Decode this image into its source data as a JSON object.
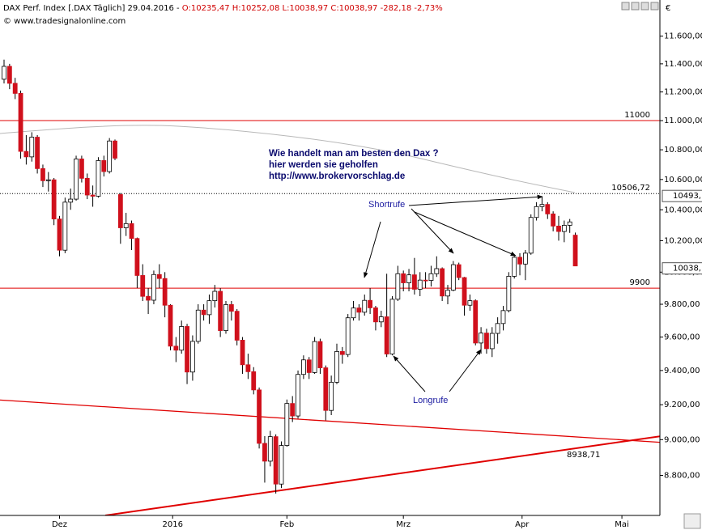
{
  "chart_data": {
    "type": "candlestick",
    "title": "DAX Perf. Index [.DAX  Täglich] 29.04.2016 - ",
    "subtitle": "O:10235,47 H:10252,08 L:10038,97 C:10038,97 -282,18 -2,73%",
    "source": "© www.tradesignalonline.com",
    "currency": "€",
    "annotations": [
      "Wie handelt man am besten  den Dax ?",
      "hier werden sie geholfen",
      "http://www.brokervorschlag.de",
      "Shortrufe",
      "Longrufe",
      "8938,71"
    ],
    "price_tags": [
      "10493,",
      "10038,"
    ],
    "log_scale": true,
    "up_color": "#ffffff",
    "down_color": "#d0101c",
    "line_color": "#e00000",
    "open": [
      11290,
      11382,
      11261,
      11190,
      10789,
      10752,
      10886,
      10673,
      10592,
      10598,
      10340,
      10139,
      10450,
      10470,
      10738,
      10608,
      10497,
      10489,
      10727,
      10653,
      10860,
      10500,
      10283,
      10310,
      10214,
      9979,
      9849,
      9825,
      9985,
      9960,
      9794,
      9545,
      9521,
      9664,
      9391,
      9574,
      9764,
      9736,
      9822,
      9880,
      9639,
      9798,
      9757,
      9581,
      9434,
      9393,
      9286,
      8979,
      8879,
      9017,
      8752,
      8967,
      9207,
      9135,
      9377,
      9463,
      9388,
      9573,
      9416,
      9167,
      9331,
      9513,
      9495,
      9717,
      9777,
      9751,
      9824,
      9778,
      9692,
      9723,
      9498,
      9831,
      9990,
      9933,
      9983,
      9893,
      9950,
      9948,
      9990,
      10022,
      9851,
      9887,
      10047,
      9966,
      9794,
      9822,
      9564,
      9624,
      9530,
      9622,
      9682,
      9761,
      9974,
      10094,
      10051,
      10120,
      10350,
      10421,
      10435,
      10373,
      10294,
      10259,
      10299,
      10235.47
    ],
    "high": [
      11430,
      11400,
      11300,
      11210,
      10900,
      10920,
      10900,
      10700,
      10650,
      10610,
      10360,
      10480,
      10540,
      10760,
      10760,
      10640,
      10560,
      10750,
      10760,
      10880,
      10870,
      10510,
      10380,
      10330,
      10220,
      10050,
      9900,
      10010,
      10050,
      10000,
      9800,
      9600,
      9700,
      9680,
      9610,
      9800,
      9800,
      9860,
      9920,
      9900,
      9820,
      9820,
      9770,
      9600,
      9500,
      9420,
      9300,
      9020,
      9050,
      9030,
      8990,
      9230,
      9250,
      9400,
      9490,
      9480,
      9600,
      9590,
      9430,
      9370,
      9560,
      9540,
      9740,
      9820,
      9800,
      9860,
      9900,
      9790,
      9760,
      9990,
      9850,
      10040,
      10010,
      10020,
      10090,
      10000,
      10000,
      10040,
      10100,
      10030,
      9920,
      10070,
      10060,
      9970,
      9860,
      9830,
      9660,
      9650,
      9660,
      9720,
      9790,
      10000,
      10110,
      10120,
      10140,
      10370,
      10450,
      10486,
      10450,
      10390,
      10360,
      10330,
      10340,
      10252.08
    ],
    "low": [
      11260,
      11220,
      11150,
      10740,
      10700,
      10720,
      10640,
      10550,
      10520,
      10300,
      10100,
      10120,
      10400,
      10460,
      10580,
      10470,
      10420,
      10480,
      10620,
      10640,
      10730,
      10180,
      10230,
      10140,
      9900,
      9820,
      9740,
      9800,
      9900,
      9720,
      9520,
      9450,
      9500,
      9320,
      9340,
      9560,
      9700,
      9680,
      9780,
      9600,
      9620,
      9700,
      9550,
      9380,
      9350,
      9260,
      8950,
      8760,
      8850,
      8700,
      8730,
      8960,
      9100,
      9120,
      9350,
      9350,
      9380,
      9380,
      9110,
      9140,
      9320,
      9440,
      9480,
      9700,
      9700,
      9730,
      9740,
      9640,
      9660,
      9480,
      9490,
      9820,
      9880,
      9880,
      9860,
      9850,
      9900,
      9910,
      9970,
      9820,
      9800,
      9880,
      9950,
      9730,
      9760,
      9550,
      9500,
      9500,
      9480,
      9560,
      9640,
      9750,
      9960,
      9980,
      9950,
      10110,
      10330,
      10390,
      10340,
      10260,
      10200,
      10190,
      10250,
      10038.97
    ],
    "close": [
      11382,
      11261,
      11190,
      10789,
      10752,
      10886,
      10673,
      10592,
      10598,
      10340,
      10139,
      10450,
      10470,
      10738,
      10608,
      10497,
      10489,
      10727,
      10653,
      10860,
      10743,
      10283,
      10310,
      10214,
      9979,
      9849,
      9825,
      9985,
      9960,
      9794,
      9545,
      9521,
      9664,
      9391,
      9574,
      9764,
      9736,
      9822,
      9880,
      9639,
      9798,
      9757,
      9581,
      9434,
      9393,
      9286,
      8979,
      8879,
      9017,
      8752,
      8967,
      9207,
      9135,
      9377,
      9463,
      9388,
      9573,
      9416,
      9167,
      9331,
      9513,
      9495,
      9717,
      9777,
      9751,
      9824,
      9778,
      9692,
      9723,
      9498,
      9831,
      9990,
      9933,
      9983,
      9893,
      9950,
      9948,
      9990,
      10022,
      9851,
      9887,
      10047,
      9966,
      9794,
      9822,
      9564,
      9624,
      9530,
      9622,
      9682,
      9761,
      9974,
      10094,
      10051,
      10120,
      10350,
      10421,
      10435,
      10373,
      10294,
      10259,
      10299,
      10321,
      10038.97
    ],
    "xlim": [
      -0.73,
      118.25
    ],
    "xticks": [
      {
        "value": 10,
        "label": "Dez"
      },
      {
        "value": 30.4,
        "label": "2016"
      },
      {
        "value": 51,
        "label": "Feb"
      },
      {
        "value": 72,
        "label": "Mrz"
      },
      {
        "value": 93.4,
        "label": "Apr"
      },
      {
        "value": 111.4,
        "label": "Mai"
      }
    ],
    "ylim": [
      8581,
      11867
    ],
    "yticks": [
      {
        "value": 8800,
        "label": "8.800,00"
      },
      {
        "value": 9000,
        "label": "9.000,00"
      },
      {
        "value": 9200,
        "label": "9.200,00"
      },
      {
        "value": 9400,
        "label": "9.400,00"
      },
      {
        "value": 9600,
        "label": "9.600,00"
      },
      {
        "value": 9800,
        "label": "9.800,00"
      },
      {
        "value": 10000,
        "label": "10.000,00"
      },
      {
        "value": 10200,
        "label": "10.200,00"
      },
      {
        "value": 10400,
        "label": "10.400,00"
      },
      {
        "value": 10600,
        "label": "10.600,00"
      },
      {
        "value": 10800,
        "label": "10.800,00"
      },
      {
        "value": 11000,
        "label": "11.000,00"
      },
      {
        "value": 11200,
        "label": "11.200,00"
      },
      {
        "value": 11400,
        "label": "11.400,00"
      },
      {
        "value": 11600,
        "label": "11.600,00"
      }
    ],
    "hlines": [
      {
        "value": 11000,
        "label": "11000"
      },
      {
        "value": 9900,
        "label": "9900"
      },
      {
        "value": 10506.72,
        "label": "10506,72",
        "dotted": true
      }
    ],
    "trendlines": [
      {
        "x": [
          -0.73,
          118.25
        ],
        "y": [
          9227,
          8985
        ]
      },
      {
        "x": [
          18.25,
          118.25
        ],
        "y": [
          8581,
          9019
        ]
      }
    ]
  }
}
